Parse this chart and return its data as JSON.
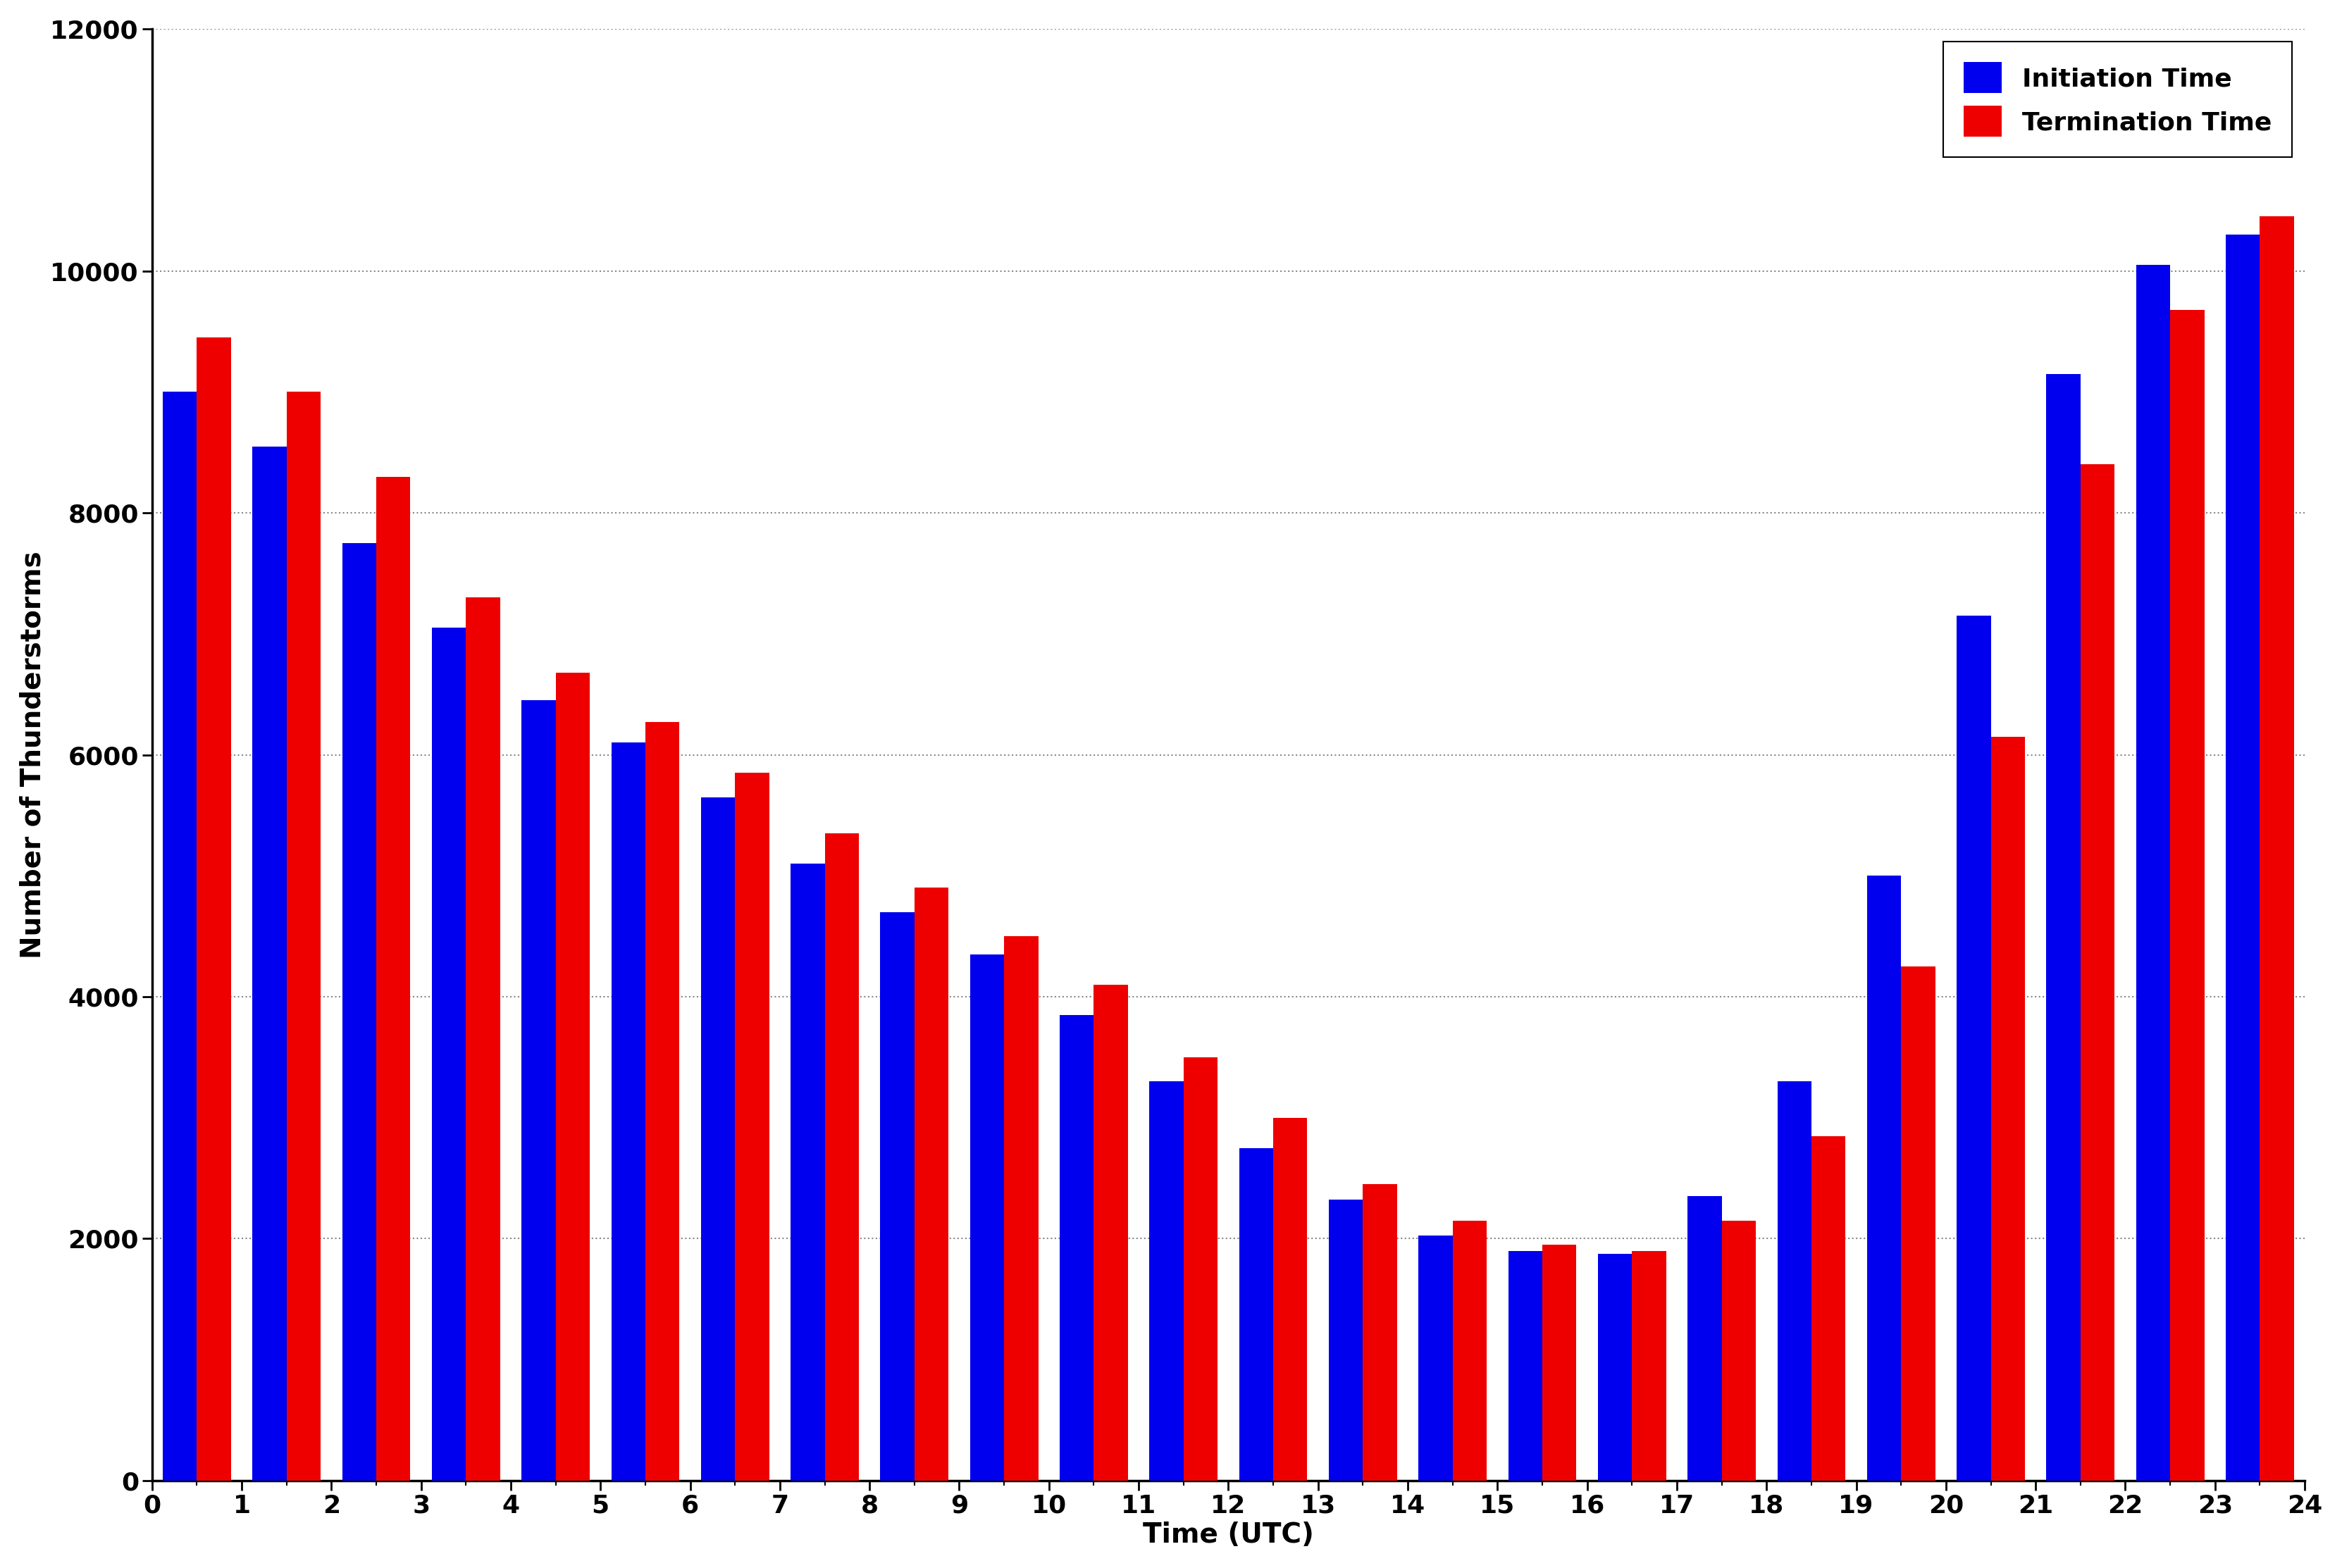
{
  "initiation": [
    9000,
    8550,
    7750,
    7050,
    6450,
    6100,
    5650,
    5100,
    4700,
    4350,
    3850,
    3300,
    2750,
    2325,
    2025,
    1900,
    1875,
    2350,
    3300,
    5000,
    7150,
    9150,
    10050,
    10300
  ],
  "termination": [
    9450,
    9000,
    8300,
    7300,
    6680,
    6270,
    5850,
    5350,
    4900,
    4500,
    4100,
    3500,
    3000,
    2450,
    2150,
    1950,
    1900,
    2150,
    2850,
    4250,
    6150,
    8400,
    9680,
    10450
  ],
  "bar_color_init": "#0000EE",
  "bar_color_term": "#EE0000",
  "xlabel": "Time (UTC)",
  "ylabel": "Number of Thunderstorms",
  "ylim": [
    0,
    12000
  ],
  "yticks": [
    0,
    2000,
    4000,
    6000,
    8000,
    10000,
    12000
  ],
  "xticks": [
    0,
    1,
    2,
    3,
    4,
    5,
    6,
    7,
    8,
    9,
    10,
    11,
    12,
    13,
    14,
    15,
    16,
    17,
    18,
    19,
    20,
    21,
    22,
    23,
    24
  ],
  "legend_labels": [
    "Initiation Time",
    "Termination Time"
  ],
  "background_color": "#ffffff",
  "grid_color": "#888888",
  "label_fontsize": 28,
  "tick_fontsize": 26,
  "legend_fontsize": 26
}
